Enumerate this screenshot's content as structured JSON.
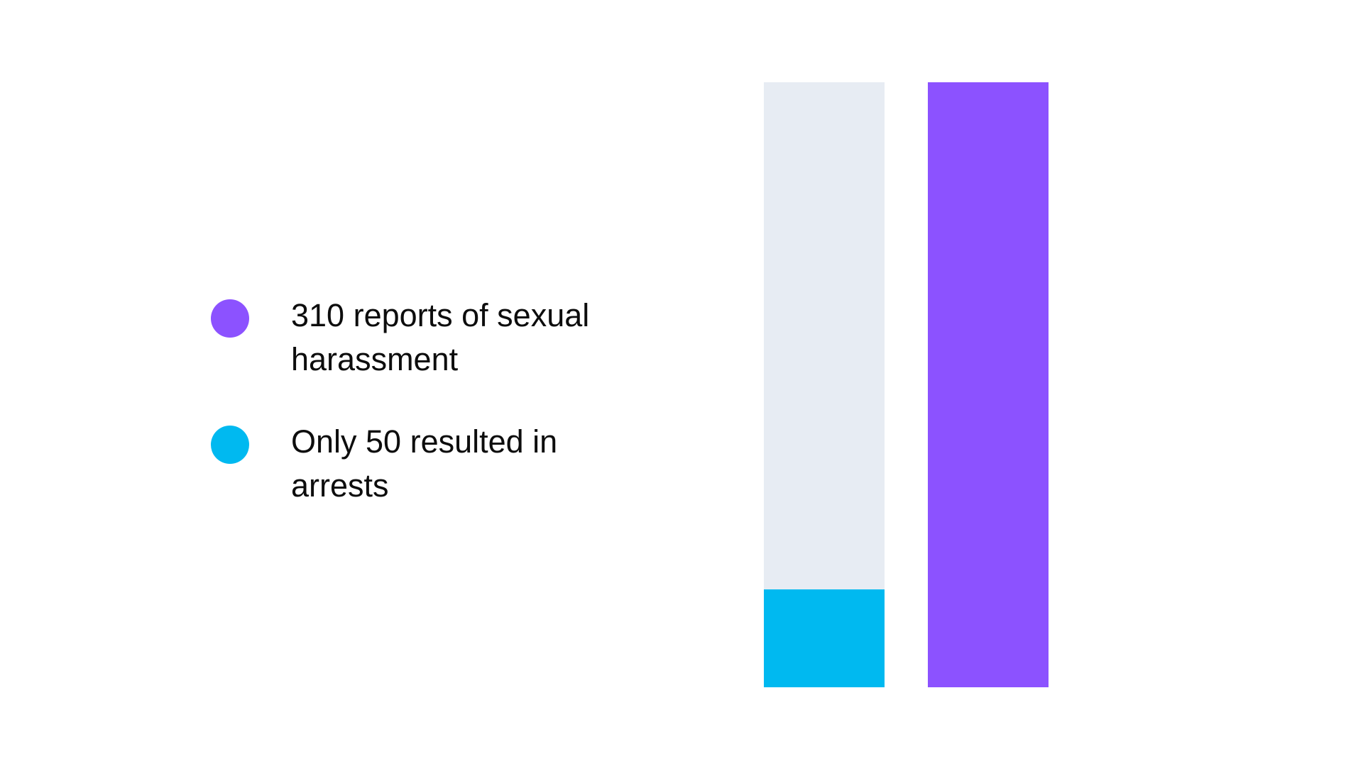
{
  "colors": {
    "background": "#ffffff",
    "text": "#0d0d0d",
    "purple": "#8C52FF",
    "cyan": "#00B9F0",
    "bar_track": "#E7ECF3"
  },
  "legend": {
    "items": [
      {
        "id": "reports",
        "color": "#8C52FF",
        "lines": [
          "310 reports of sexual",
          "harassment"
        ],
        "label": "310 reports of sexual harassment"
      },
      {
        "id": "arrests",
        "color": "#00B9F0",
        "lines": [
          "Only 50 resulted in",
          "arrests"
        ],
        "label": "Only 50 resulted in arrests"
      }
    ]
  },
  "chart_data": {
    "type": "bar",
    "title": "",
    "xlabel": "",
    "ylabel": "",
    "ylim": [
      0,
      310
    ],
    "axes_visible": false,
    "gridlines": false,
    "legend_position": "left",
    "categories": [
      "Only 50 resulted in arrests",
      "310 reports of sexual harassment"
    ],
    "values": [
      50,
      310
    ],
    "bars": [
      {
        "label": "Only 50 resulted in arrests",
        "value": 50,
        "max": 310,
        "fill_color": "#00B9F0",
        "track_color": "#E7ECF3"
      },
      {
        "label": "310 reports of sexual harassment",
        "value": 310,
        "max": 310,
        "fill_color": "#8C52FF",
        "track_color": "#E7ECF3"
      }
    ]
  }
}
